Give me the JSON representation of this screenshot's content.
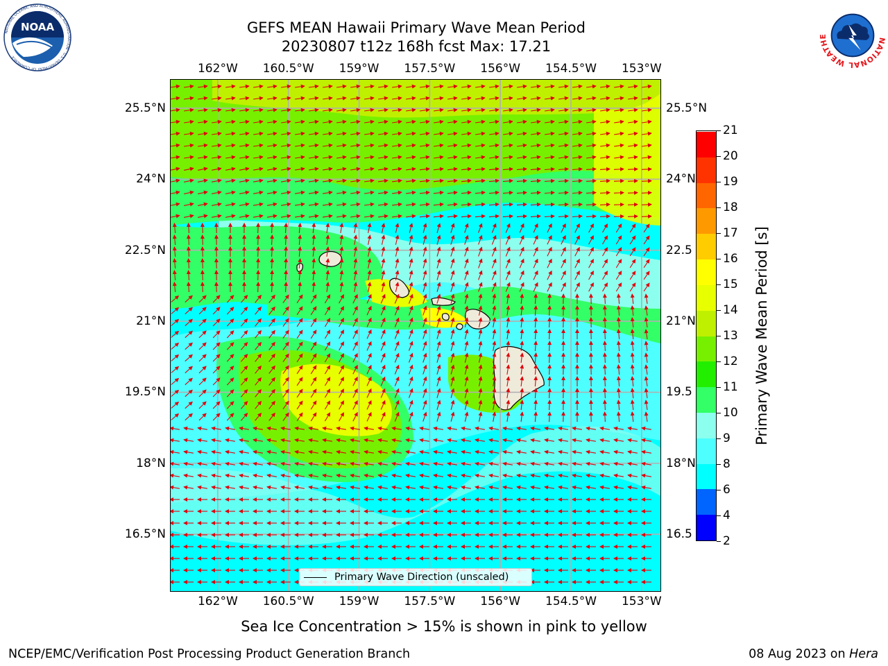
{
  "header": {
    "title_line1": "GEFS MEAN Hawaii Primary Wave Mean Period",
    "title_line2": "20230807 t12z 168h fcst   Max: 17.21"
  },
  "logos": {
    "noaa": {
      "text": "NOAA",
      "ring_text": "NATIONAL OCEANIC AND ATMOSPHERIC ADMINISTRATION · U.S. DEPARTMENT OF COMMERCE",
      "icon": "noaa-logo"
    },
    "nws": {
      "ring_text": "NATIONAL WEATHER SERVICE",
      "icon": "nws-logo"
    }
  },
  "map": {
    "lon_ticks": [
      "162°W",
      "160.5°W",
      "159°W",
      "157.5°W",
      "156°W",
      "154.5°W",
      "153°W"
    ],
    "lon_values": [
      -162,
      -160.5,
      -159,
      -157.5,
      -156,
      -154.5,
      -153
    ],
    "lat_ticks": [
      "25.5°N",
      "24°N",
      "22.5°N",
      "21°N",
      "19.5°N",
      "18°N",
      "16.5°N"
    ],
    "lat_values": [
      25.5,
      24,
      22.5,
      21,
      19.5,
      18,
      16.5
    ],
    "right_lat_ticks": [
      "25.5°N",
      "24°N",
      "22.5",
      "21°N",
      "19.5",
      "18°N",
      "16.5"
    ],
    "lon_range": [
      -163,
      -152.6
    ],
    "lat_range": [
      15.3,
      26.1
    ],
    "grid": true,
    "arrow_color": "#e0000a",
    "legend": "Primary Wave Direction (unscaled)",
    "features": [
      "Kauai",
      "Niihau",
      "Oahu",
      "Molokai",
      "Lanai",
      "Maui",
      "Kahoolawe",
      "Hawaii (Big Island)"
    ]
  },
  "colorbar": {
    "label": "Primary Wave Mean Period [s]",
    "ticks": [
      "21",
      "20",
      "19",
      "18",
      "17",
      "16",
      "15",
      "14",
      "13",
      "12",
      "11",
      "10",
      "9",
      "8",
      "6",
      "4",
      "2"
    ],
    "levels": [
      2,
      4,
      6,
      8,
      9,
      10,
      11,
      12,
      13,
      14,
      15,
      16,
      17,
      18,
      19,
      20,
      21
    ],
    "colors": [
      "#0000ff",
      "#0064ff",
      "#00ffff",
      "#4dffff",
      "#8cffee",
      "#33ff66",
      "#22ee00",
      "#77f000",
      "#bff000",
      "#e8ff00",
      "#ffff00",
      "#ffcc00",
      "#ff9900",
      "#ff6600",
      "#ff3300",
      "#ff0000"
    ]
  },
  "footer": {
    "ice_note": "Sea Ice Concentration > 15% is shown in pink to yellow",
    "left": "NCEP/EMC/Verification Post Processing Product Generation Branch",
    "date": "08 Aug 2023 on ",
    "host": "Hera"
  }
}
